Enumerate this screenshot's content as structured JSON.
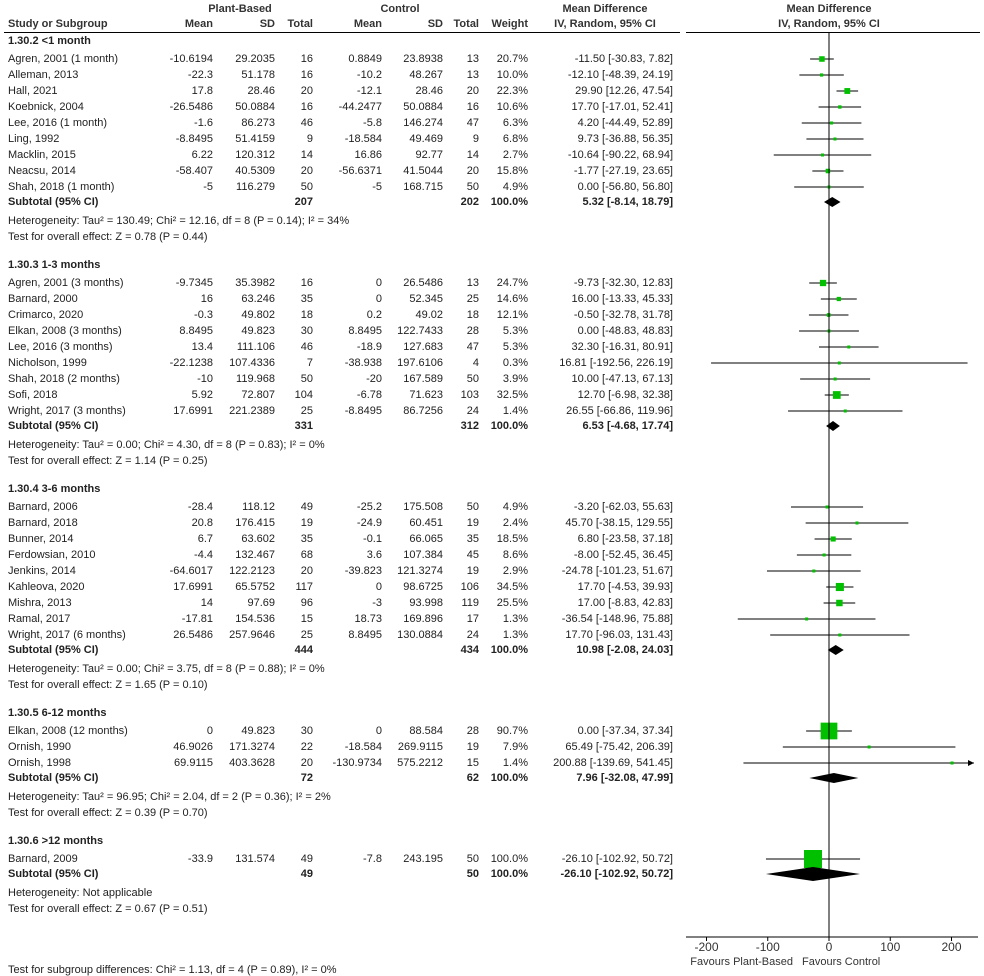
{
  "headers": {
    "group_plant": "Plant-Based",
    "group_control": "Control",
    "study": "Study or Subgroup",
    "mean": "Mean",
    "sd": "SD",
    "total": "Total",
    "weight": "Weight",
    "md_title": "Mean Difference",
    "md_method": "IV, Random, 95% CI",
    "plot_title": "Mean Difference",
    "plot_method": "IV, Random, 95% CI"
  },
  "colors": {
    "square": "#00c000",
    "diamond": "#000000",
    "lines": "#000000"
  },
  "chart_data": {
    "type": "forest",
    "xlim": [
      -233,
      237
    ],
    "ticks": [
      -200,
      -100,
      0,
      100,
      200
    ],
    "tick_labels": [
      "-200",
      "-100",
      "0",
      "100",
      "200"
    ],
    "xlabel_left": "Favours Plant-Based",
    "xlabel_right": "Favours Control",
    "sections": [
      {
        "title": "1.30.2 <1 month",
        "studies": [
          {
            "name": "Agren, 2001 (1 month)",
            "pb_mean": "-10.6194",
            "pb_sd": "29.2035",
            "pb_total": "16",
            "c_mean": "0.8849",
            "c_sd": "23.8938",
            "c_total": "13",
            "weight": "20.7%",
            "w": 20.7,
            "md_text": "-11.50 [-30.83, 7.82]",
            "md": -11.5,
            "lo": -30.83,
            "hi": 7.82
          },
          {
            "name": "Alleman, 2013",
            "pb_mean": "-22.3",
            "pb_sd": "51.178",
            "pb_total": "16",
            "c_mean": "-10.2",
            "c_sd": "48.267",
            "c_total": "13",
            "weight": "10.0%",
            "w": 10.0,
            "md_text": "-12.10 [-48.39, 24.19]",
            "md": -12.1,
            "lo": -48.39,
            "hi": 24.19
          },
          {
            "name": "Hall, 2021",
            "pb_mean": "17.8",
            "pb_sd": "28.46",
            "pb_total": "20",
            "c_mean": "-12.1",
            "c_sd": "28.46",
            "c_total": "20",
            "weight": "22.3%",
            "w": 22.3,
            "md_text": "29.90 [12.26, 47.54]",
            "md": 29.9,
            "lo": 12.26,
            "hi": 47.54
          },
          {
            "name": "Koebnick, 2004",
            "pb_mean": "-26.5486",
            "pb_sd": "50.0884",
            "pb_total": "16",
            "c_mean": "-44.2477",
            "c_sd": "50.0884",
            "c_total": "16",
            "weight": "10.6%",
            "w": 10.6,
            "md_text": "17.70 [-17.01, 52.41]",
            "md": 17.7,
            "lo": -17.01,
            "hi": 52.41
          },
          {
            "name": "Lee, 2016 (1 month)",
            "pb_mean": "-1.6",
            "pb_sd": "86.273",
            "pb_total": "46",
            "c_mean": "-5.8",
            "c_sd": "146.274",
            "c_total": "47",
            "weight": "6.3%",
            "w": 6.3,
            "md_text": "4.20 [-44.49, 52.89]",
            "md": 4.2,
            "lo": -44.49,
            "hi": 52.89
          },
          {
            "name": "Ling, 1992",
            "pb_mean": "-8.8495",
            "pb_sd": "51.4159",
            "pb_total": "9",
            "c_mean": "-18.584",
            "c_sd": "49.469",
            "c_total": "9",
            "weight": "6.8%",
            "w": 6.8,
            "md_text": "9.73 [-36.88, 56.35]",
            "md": 9.73,
            "lo": -36.88,
            "hi": 56.35
          },
          {
            "name": "Macklin, 2015",
            "pb_mean": "6.22",
            "pb_sd": "120.312",
            "pb_total": "14",
            "c_mean": "16.86",
            "c_sd": "92.77",
            "c_total": "14",
            "weight": "2.7%",
            "w": 2.7,
            "md_text": "-10.64 [-90.22, 68.94]",
            "md": -10.64,
            "lo": -90.22,
            "hi": 68.94
          },
          {
            "name": "Neacsu, 2014",
            "pb_mean": "-58.407",
            "pb_sd": "40.5309",
            "pb_total": "20",
            "c_mean": "-56.6371",
            "c_sd": "41.5044",
            "c_total": "20",
            "weight": "15.8%",
            "w": 15.8,
            "md_text": "-1.77 [-27.19, 23.65]",
            "md": -1.77,
            "lo": -27.19,
            "hi": 23.65
          },
          {
            "name": "Shah, 2018 (1 month)",
            "pb_mean": "-5",
            "pb_sd": "116.279",
            "pb_total": "50",
            "c_mean": "-5",
            "c_sd": "168.715",
            "c_total": "50",
            "weight": "4.9%",
            "w": 4.9,
            "md_text": "0.00 [-56.80, 56.80]",
            "md": 0.0,
            "lo": -56.8,
            "hi": 56.8
          }
        ],
        "subtotal": {
          "label": "Subtotal (95% CI)",
          "pb_total": "207",
          "c_total": "202",
          "weight": "100.0%",
          "md_text": "5.32 [-8.14, 18.79]",
          "md": 5.32,
          "lo": -8.14,
          "hi": 18.79
        },
        "heterogeneity": "Heterogeneity: Tau² = 130.49; Chi² = 12.16, df = 8 (P = 0.14); I² = 34%",
        "overall": "Test for overall effect: Z = 0.78 (P = 0.44)"
      },
      {
        "title": "1.30.3 1-3 months",
        "studies": [
          {
            "name": "Agren, 2001 (3 months)",
            "pb_mean": "-9.7345",
            "pb_sd": "35.3982",
            "pb_total": "16",
            "c_mean": "0",
            "c_sd": "26.5486",
            "c_total": "13",
            "weight": "24.7%",
            "w": 24.7,
            "md_text": "-9.73 [-32.30, 12.83]",
            "md": -9.73,
            "lo": -32.3,
            "hi": 12.83
          },
          {
            "name": "Barnard, 2000",
            "pb_mean": "16",
            "pb_sd": "63.246",
            "pb_total": "35",
            "c_mean": "0",
            "c_sd": "52.345",
            "c_total": "25",
            "weight": "14.6%",
            "w": 14.6,
            "md_text": "16.00 [-13.33, 45.33]",
            "md": 16.0,
            "lo": -13.33,
            "hi": 45.33
          },
          {
            "name": "Crimarco, 2020",
            "pb_mean": "-0.3",
            "pb_sd": "49.802",
            "pb_total": "18",
            "c_mean": "0.2",
            "c_sd": "49.02",
            "c_total": "18",
            "weight": "12.1%",
            "w": 12.1,
            "md_text": "-0.50 [-32.78, 31.78]",
            "md": -0.5,
            "lo": -32.78,
            "hi": 31.78
          },
          {
            "name": "Elkan, 2008 (3 months)",
            "pb_mean": "8.8495",
            "pb_sd": "49.823",
            "pb_total": "30",
            "c_mean": "8.8495",
            "c_sd": "122.7433",
            "c_total": "28",
            "weight": "5.3%",
            "w": 5.3,
            "md_text": "0.00 [-48.83, 48.83]",
            "md": 0.0,
            "lo": -48.83,
            "hi": 48.83
          },
          {
            "name": "Lee, 2016 (3 months)",
            "pb_mean": "13.4",
            "pb_sd": "111.106",
            "pb_total": "46",
            "c_mean": "-18.9",
            "c_sd": "127.683",
            "c_total": "47",
            "weight": "5.3%",
            "w": 5.3,
            "md_text": "32.30 [-16.31, 80.91]",
            "md": 32.3,
            "lo": -16.31,
            "hi": 80.91
          },
          {
            "name": "Nicholson, 1999",
            "pb_mean": "-22.1238",
            "pb_sd": "107.4336",
            "pb_total": "7",
            "c_mean": "-38.938",
            "c_sd": "197.6106",
            "c_total": "4",
            "weight": "0.3%",
            "w": 0.3,
            "md_text": "16.81 [-192.56, 226.19]",
            "md": 16.81,
            "lo": -192.56,
            "hi": 226.19
          },
          {
            "name": "Shah, 2018 (2 months)",
            "pb_mean": "-10",
            "pb_sd": "119.968",
            "pb_total": "50",
            "c_mean": "-20",
            "c_sd": "167.589",
            "c_total": "50",
            "weight": "3.9%",
            "w": 3.9,
            "md_text": "10.00 [-47.13, 67.13]",
            "md": 10.0,
            "lo": -47.13,
            "hi": 67.13
          },
          {
            "name": "Sofi, 2018",
            "pb_mean": "5.92",
            "pb_sd": "72.807",
            "pb_total": "104",
            "c_mean": "-6.78",
            "c_sd": "71.623",
            "c_total": "103",
            "weight": "32.5%",
            "w": 32.5,
            "md_text": "12.70 [-6.98, 32.38]",
            "md": 12.7,
            "lo": -6.98,
            "hi": 32.38
          },
          {
            "name": "Wright, 2017 (3 months)",
            "pb_mean": "17.6991",
            "pb_sd": "221.2389",
            "pb_total": "25",
            "c_mean": "-8.8495",
            "c_sd": "86.7256",
            "c_total": "24",
            "weight": "1.4%",
            "w": 1.4,
            "md_text": "26.55 [-66.86, 119.96]",
            "md": 26.55,
            "lo": -66.86,
            "hi": 119.96
          }
        ],
        "subtotal": {
          "label": "Subtotal (95% CI)",
          "pb_total": "331",
          "c_total": "312",
          "weight": "100.0%",
          "md_text": "6.53 [-4.68, 17.74]",
          "md": 6.53,
          "lo": -4.68,
          "hi": 17.74
        },
        "heterogeneity": "Heterogeneity: Tau² = 0.00; Chi² = 4.30, df = 8 (P = 0.83); I² = 0%",
        "overall": "Test for overall effect: Z = 1.14 (P = 0.25)"
      },
      {
        "title": "1.30.4 3-6 months",
        "studies": [
          {
            "name": "Barnard, 2006",
            "pb_mean": "-28.4",
            "pb_sd": "118.12",
            "pb_total": "49",
            "c_mean": "-25.2",
            "c_sd": "175.508",
            "c_total": "50",
            "weight": "4.9%",
            "w": 4.9,
            "md_text": "-3.20 [-62.03, 55.63]",
            "md": -3.2,
            "lo": -62.03,
            "hi": 55.63
          },
          {
            "name": "Barnard, 2018",
            "pb_mean": "20.8",
            "pb_sd": "176.415",
            "pb_total": "19",
            "c_mean": "-24.9",
            "c_sd": "60.451",
            "c_total": "19",
            "weight": "2.4%",
            "w": 2.4,
            "md_text": "45.70 [-38.15, 129.55]",
            "md": 45.7,
            "lo": -38.15,
            "hi": 129.55
          },
          {
            "name": "Bunner, 2014",
            "pb_mean": "6.7",
            "pb_sd": "63.602",
            "pb_total": "35",
            "c_mean": "-0.1",
            "c_sd": "66.065",
            "c_total": "35",
            "weight": "18.5%",
            "w": 18.5,
            "md_text": "6.80 [-23.58, 37.18]",
            "md": 6.8,
            "lo": -23.58,
            "hi": 37.18
          },
          {
            "name": "Ferdowsian, 2010",
            "pb_mean": "-4.4",
            "pb_sd": "132.467",
            "pb_total": "68",
            "c_mean": "3.6",
            "c_sd": "107.384",
            "c_total": "45",
            "weight": "8.6%",
            "w": 8.6,
            "md_text": "-8.00 [-52.45, 36.45]",
            "md": -8.0,
            "lo": -52.45,
            "hi": 36.45
          },
          {
            "name": "Jenkins, 2014",
            "pb_mean": "-64.6017",
            "pb_sd": "122.2123",
            "pb_total": "20",
            "c_mean": "-39.823",
            "c_sd": "121.3274",
            "c_total": "19",
            "weight": "2.9%",
            "w": 2.9,
            "md_text": "-24.78 [-101.23, 51.67]",
            "md": -24.78,
            "lo": -101.23,
            "hi": 51.67
          },
          {
            "name": "Kahleova, 2020",
            "pb_mean": "17.6991",
            "pb_sd": "65.5752",
            "pb_total": "117",
            "c_mean": "0",
            "c_sd": "98.6725",
            "c_total": "106",
            "weight": "34.5%",
            "w": 34.5,
            "md_text": "17.70 [-4.53, 39.93]",
            "md": 17.7,
            "lo": -4.53,
            "hi": 39.93
          },
          {
            "name": "Mishra, 2013",
            "pb_mean": "14",
            "pb_sd": "97.69",
            "pb_total": "96",
            "c_mean": "-3",
            "c_sd": "93.998",
            "c_total": "119",
            "weight": "25.5%",
            "w": 25.5,
            "md_text": "17.00 [-8.83, 42.83]",
            "md": 17.0,
            "lo": -8.83,
            "hi": 42.83
          },
          {
            "name": "Ramal, 2017",
            "pb_mean": "-17.81",
            "pb_sd": "154.536",
            "pb_total": "15",
            "c_mean": "18.73",
            "c_sd": "169.896",
            "c_total": "17",
            "weight": "1.3%",
            "w": 1.3,
            "md_text": "-36.54 [-148.96, 75.88]",
            "md": -36.54,
            "lo": -148.96,
            "hi": 75.88
          },
          {
            "name": "Wright, 2017 (6 months)",
            "pb_mean": "26.5486",
            "pb_sd": "257.9646",
            "pb_total": "25",
            "c_mean": "8.8495",
            "c_sd": "130.0884",
            "c_total": "24",
            "weight": "1.3%",
            "w": 1.3,
            "md_text": "17.70 [-96.03, 131.43]",
            "md": 17.7,
            "lo": -96.03,
            "hi": 131.43
          }
        ],
        "subtotal": {
          "label": "Subtotal (95% CI)",
          "pb_total": "444",
          "c_total": "434",
          "weight": "100.0%",
          "md_text": "10.98 [-2.08, 24.03]",
          "md": 10.98,
          "lo": -2.08,
          "hi": 24.03
        },
        "heterogeneity": "Heterogeneity: Tau² = 0.00; Chi² = 3.75, df = 8 (P = 0.88); I² = 0%",
        "overall": "Test for overall effect: Z = 1.65 (P = 0.10)"
      },
      {
        "title": "1.30.5 6-12 months",
        "studies": [
          {
            "name": "Elkan, 2008 (12 months)",
            "pb_mean": "0",
            "pb_sd": "49.823",
            "pb_total": "30",
            "c_mean": "0",
            "c_sd": "88.584",
            "c_total": "28",
            "weight": "90.7%",
            "w": 90.7,
            "md_text": "0.00 [-37.34, 37.34]",
            "md": 0.0,
            "lo": -37.34,
            "hi": 37.34
          },
          {
            "name": "Ornish, 1990",
            "pb_mean": "46.9026",
            "pb_sd": "171.3274",
            "pb_total": "22",
            "c_mean": "-18.584",
            "c_sd": "269.9115",
            "c_total": "19",
            "weight": "7.9%",
            "w": 7.9,
            "md_text": "65.49 [-75.42, 206.39]",
            "md": 65.49,
            "lo": -75.42,
            "hi": 206.39
          },
          {
            "name": "Ornish, 1998",
            "pb_mean": "69.9115",
            "pb_sd": "403.3628",
            "pb_total": "20",
            "c_mean": "-130.9734",
            "c_sd": "575.2212",
            "c_total": "15",
            "weight": "1.4%",
            "w": 1.4,
            "md_text": "200.88 [-139.69, 541.45]",
            "md": 200.88,
            "lo": -139.69,
            "hi": 541.45
          }
        ],
        "subtotal": {
          "label": "Subtotal (95% CI)",
          "pb_total": "72",
          "c_total": "62",
          "weight": "100.0%",
          "md_text": "7.96 [-32.08, 47.99]",
          "md": 7.96,
          "lo": -32.08,
          "hi": 47.99
        },
        "heterogeneity": "Heterogeneity: Tau² = 96.95; Chi² = 2.04, df = 2 (P = 0.36); I² = 2%",
        "overall": "Test for overall effect: Z = 0.39 (P = 0.70)"
      },
      {
        "title": "1.30.6 >12 months",
        "studies": [
          {
            "name": "Barnard, 2009",
            "pb_mean": "-33.9",
            "pb_sd": "131.574",
            "pb_total": "49",
            "c_mean": "-7.8",
            "c_sd": "243.195",
            "c_total": "50",
            "weight": "100.0%",
            "w": 100.0,
            "md_text": "-26.10 [-102.92, 50.72]",
            "md": -26.1,
            "lo": -102.92,
            "hi": 50.72
          }
        ],
        "subtotal": {
          "label": "Subtotal (95% CI)",
          "pb_total": "49",
          "c_total": "50",
          "weight": "100.0%",
          "md_text": "-26.10 [-102.92, 50.72]",
          "md": -26.1,
          "lo": -102.92,
          "hi": 50.72
        },
        "heterogeneity": "Heterogeneity: Not applicable",
        "overall": "Test for overall effect: Z = 0.67 (P = 0.51)"
      }
    ],
    "subgroup_test": "Test for subgroup differences: Chi² = 1.13, df = 4 (P = 0.89), I² = 0%"
  }
}
